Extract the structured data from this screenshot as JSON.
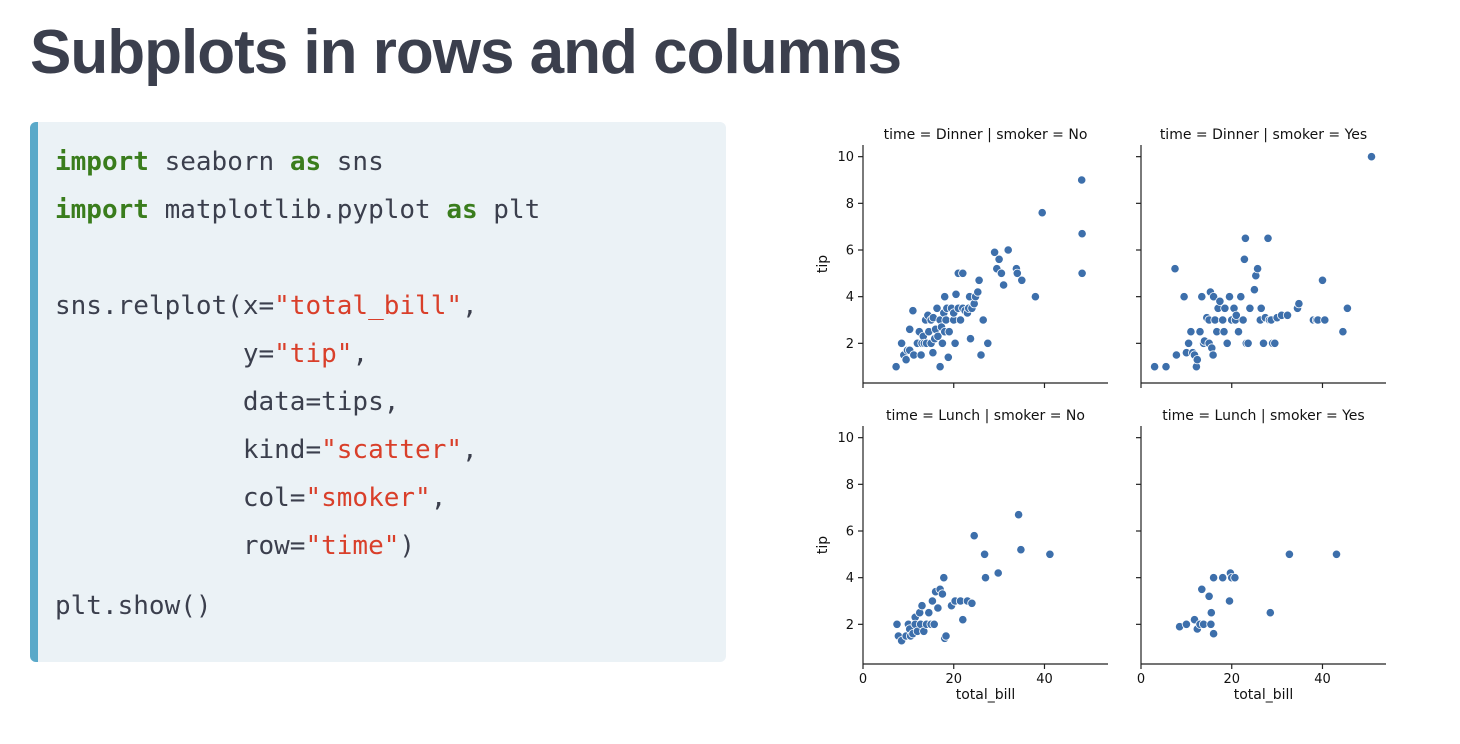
{
  "slide": {
    "title": "Subplots in rows and columns"
  },
  "code": {
    "line1": {
      "kw1": "import",
      "t1": " seaborn ",
      "kw2": "as",
      "t2": " sns"
    },
    "line2": {
      "kw1": "import",
      "t1": " matplotlib.pyplot ",
      "kw2": "as",
      "t2": " plt"
    },
    "line3": {
      "t1": "sns.relplot(x=",
      "s1": "\"total_bill\"",
      "t2": ","
    },
    "line4": {
      "indent": "            ",
      "t1": "y=",
      "s1": "\"tip\"",
      "t2": ","
    },
    "line5": {
      "indent": "            ",
      "t1": "data=tips,"
    },
    "line6": {
      "indent": "            ",
      "t1": "kind=",
      "s1": "\"scatter\"",
      "t2": ","
    },
    "line7": {
      "indent": "            ",
      "t1": "col=",
      "s1": "\"smoker\"",
      "t2": ","
    },
    "line8": {
      "indent": "            ",
      "t1": "row=",
      "s1": "\"time\"",
      "t2": ")"
    },
    "line9": {
      "t1": "plt.show()"
    }
  },
  "colors": {
    "keyword": "#3a7d1d",
    "string": "#d93f2a",
    "accent": "#5aa9c9",
    "point": "#3d6fab"
  },
  "chart_data": {
    "type": "scatter",
    "xlabel": "total_bill",
    "ylabel": "tip",
    "xlim": [
      0,
      54
    ],
    "ylim": [
      0.3,
      10.5
    ],
    "x_ticks": [
      0,
      20,
      40
    ],
    "y_ticks": [
      2,
      4,
      6,
      8,
      10
    ],
    "panels": [
      {
        "title": "time = Dinner | smoker = No",
        "points": [
          [
            7.3,
            1.0
          ],
          [
            8.5,
            2.0
          ],
          [
            9.0,
            1.5
          ],
          [
            9.5,
            1.3
          ],
          [
            9.8,
            1.7
          ],
          [
            10.3,
            2.6
          ],
          [
            10.3,
            1.7
          ],
          [
            11.0,
            3.4
          ],
          [
            11.2,
            1.5
          ],
          [
            12.0,
            2.0
          ],
          [
            12.4,
            2.5
          ],
          [
            12.8,
            1.5
          ],
          [
            13.0,
            2.0
          ],
          [
            13.3,
            2.3
          ],
          [
            13.5,
            2.0
          ],
          [
            13.8,
            3.0
          ],
          [
            14.0,
            2.0
          ],
          [
            14.3,
            3.2
          ],
          [
            14.5,
            2.5
          ],
          [
            15.0,
            2.0
          ],
          [
            15.0,
            3.0
          ],
          [
            15.4,
            1.6
          ],
          [
            15.5,
            3.1
          ],
          [
            15.8,
            2.2
          ],
          [
            16.0,
            2.6
          ],
          [
            16.3,
            3.5
          ],
          [
            16.5,
            2.3
          ],
          [
            17.0,
            1.0
          ],
          [
            17.0,
            3.0
          ],
          [
            17.3,
            2.7
          ],
          [
            17.5,
            2.0
          ],
          [
            17.8,
            3.3
          ],
          [
            18.0,
            2.5
          ],
          [
            18.0,
            4.0
          ],
          [
            18.3,
            3.0
          ],
          [
            18.5,
            3.5
          ],
          [
            18.8,
            1.4
          ],
          [
            19.0,
            2.5
          ],
          [
            19.5,
            3.5
          ],
          [
            20.0,
            3.0
          ],
          [
            20.0,
            3.3
          ],
          [
            20.3,
            2.0
          ],
          [
            20.5,
            4.1
          ],
          [
            21.0,
            3.5
          ],
          [
            21.0,
            5.0
          ],
          [
            21.5,
            3.0
          ],
          [
            22.0,
            3.5
          ],
          [
            22.0,
            5.0
          ],
          [
            22.5,
            3.4
          ],
          [
            23.0,
            3.3
          ],
          [
            23.3,
            3.5
          ],
          [
            23.5,
            4.0
          ],
          [
            23.7,
            2.2
          ],
          [
            24.0,
            3.5
          ],
          [
            24.5,
            3.7
          ],
          [
            24.8,
            4.0
          ],
          [
            25.3,
            4.2
          ],
          [
            25.6,
            4.7
          ],
          [
            26.0,
            1.5
          ],
          [
            26.5,
            3.0
          ],
          [
            27.5,
            2.0
          ],
          [
            29.0,
            5.9
          ],
          [
            29.5,
            5.2
          ],
          [
            30.0,
            5.6
          ],
          [
            30.5,
            5.0
          ],
          [
            31.0,
            4.5
          ],
          [
            32.0,
            6.0
          ],
          [
            33.8,
            5.2
          ],
          [
            34.0,
            5.0
          ],
          [
            35.0,
            4.7
          ],
          [
            38.0,
            4.0
          ],
          [
            39.5,
            7.6
          ],
          [
            48.2,
            9.0
          ],
          [
            48.3,
            6.7
          ],
          [
            48.3,
            5.0
          ]
        ]
      },
      {
        "title": "time = Dinner | smoker = Yes",
        "points": [
          [
            3.0,
            1.0
          ],
          [
            5.5,
            1.0
          ],
          [
            7.5,
            5.2
          ],
          [
            7.8,
            1.5
          ],
          [
            9.5,
            4.0
          ],
          [
            10.0,
            1.6
          ],
          [
            10.5,
            2.0
          ],
          [
            11.0,
            2.5
          ],
          [
            11.4,
            1.6
          ],
          [
            11.8,
            1.5
          ],
          [
            12.2,
            1.0
          ],
          [
            12.4,
            1.3
          ],
          [
            13.0,
            2.5
          ],
          [
            13.4,
            4.0
          ],
          [
            13.8,
            2.0
          ],
          [
            14.0,
            2.1
          ],
          [
            14.5,
            3.1
          ],
          [
            15.0,
            2.0
          ],
          [
            15.0,
            3.0
          ],
          [
            15.3,
            4.2
          ],
          [
            15.6,
            1.8
          ],
          [
            15.9,
            1.5
          ],
          [
            16.0,
            4.0
          ],
          [
            16.3,
            3.0
          ],
          [
            16.7,
            2.5
          ],
          [
            17.0,
            3.5
          ],
          [
            17.4,
            3.8
          ],
          [
            18.0,
            3.0
          ],
          [
            18.3,
            2.5
          ],
          [
            18.5,
            3.5
          ],
          [
            19.0,
            2.0
          ],
          [
            19.5,
            4.0
          ],
          [
            20.0,
            3.0
          ],
          [
            20.5,
            3.5
          ],
          [
            20.8,
            3.0
          ],
          [
            21.0,
            3.2
          ],
          [
            21.5,
            2.5
          ],
          [
            22.0,
            4.0
          ],
          [
            22.5,
            3.0
          ],
          [
            22.8,
            5.6
          ],
          [
            23.0,
            6.5
          ],
          [
            23.2,
            2.0
          ],
          [
            23.6,
            2.0
          ],
          [
            24.0,
            3.5
          ],
          [
            25.0,
            4.3
          ],
          [
            25.3,
            4.9
          ],
          [
            25.7,
            5.2
          ],
          [
            26.3,
            3.0
          ],
          [
            26.5,
            3.5
          ],
          [
            27.0,
            2.0
          ],
          [
            27.4,
            3.1
          ],
          [
            28.0,
            6.5
          ],
          [
            28.3,
            3.0
          ],
          [
            28.7,
            3.0
          ],
          [
            29.0,
            2.0
          ],
          [
            29.5,
            2.0
          ],
          [
            30.0,
            3.1
          ],
          [
            31.0,
            3.2
          ],
          [
            32.3,
            3.2
          ],
          [
            34.5,
            3.5
          ],
          [
            34.8,
            3.7
          ],
          [
            38.0,
            3.0
          ],
          [
            38.7,
            3.0
          ],
          [
            39.0,
            3.0
          ],
          [
            40.5,
            3.0
          ],
          [
            40.0,
            4.7
          ],
          [
            44.5,
            2.5
          ],
          [
            45.5,
            3.5
          ],
          [
            50.8,
            10.0
          ]
        ]
      },
      {
        "title": "time = Lunch | smoker = No",
        "points": [
          [
            7.5,
            2.0
          ],
          [
            7.8,
            1.5
          ],
          [
            8.5,
            1.3
          ],
          [
            9.5,
            1.5
          ],
          [
            10.0,
            2.0
          ],
          [
            10.3,
            1.8
          ],
          [
            10.5,
            1.5
          ],
          [
            11.0,
            1.6
          ],
          [
            11.5,
            2.3
          ],
          [
            11.5,
            2.0
          ],
          [
            12.0,
            1.7
          ],
          [
            12.5,
            2.5
          ],
          [
            12.7,
            2.0
          ],
          [
            13.0,
            2.8
          ],
          [
            13.4,
            1.7
          ],
          [
            14.0,
            2.0
          ],
          [
            14.5,
            2.5
          ],
          [
            15.0,
            2.0
          ],
          [
            15.3,
            3.0
          ],
          [
            15.7,
            2.0
          ],
          [
            16.0,
            3.4
          ],
          [
            16.5,
            2.7
          ],
          [
            17.0,
            3.5
          ],
          [
            17.5,
            3.3
          ],
          [
            17.8,
            4.0
          ],
          [
            18.0,
            1.4
          ],
          [
            18.3,
            1.5
          ],
          [
            19.5,
            2.8
          ],
          [
            20.3,
            3.0
          ],
          [
            21.5,
            3.0
          ],
          [
            22.0,
            2.2
          ],
          [
            23.0,
            3.0
          ],
          [
            24.0,
            2.9
          ],
          [
            24.5,
            5.8
          ],
          [
            26.8,
            5.0
          ],
          [
            27.0,
            4.0
          ],
          [
            29.8,
            4.2
          ],
          [
            34.3,
            6.7
          ],
          [
            34.8,
            5.2
          ],
          [
            41.2,
            5.0
          ]
        ]
      },
      {
        "title": "time = Lunch | smoker = Yes",
        "points": [
          [
            8.5,
            1.9
          ],
          [
            10.0,
            2.0
          ],
          [
            11.8,
            2.2
          ],
          [
            12.4,
            1.8
          ],
          [
            13.0,
            2.0
          ],
          [
            13.4,
            3.5
          ],
          [
            13.8,
            2.0
          ],
          [
            15.0,
            3.2
          ],
          [
            15.4,
            2.0
          ],
          [
            15.5,
            2.5
          ],
          [
            16.0,
            1.6
          ],
          [
            16.0,
            4.0
          ],
          [
            18.0,
            4.0
          ],
          [
            19.5,
            3.0
          ],
          [
            19.7,
            4.2
          ],
          [
            20.0,
            4.0
          ],
          [
            20.7,
            4.0
          ],
          [
            28.5,
            2.5
          ],
          [
            32.7,
            5.0
          ],
          [
            43.1,
            5.0
          ]
        ]
      }
    ]
  }
}
